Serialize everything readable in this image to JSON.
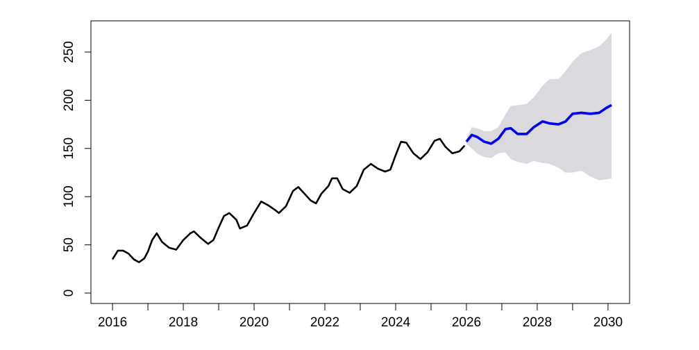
{
  "chart_data": {
    "type": "forecast",
    "xlim": [
      2015.39,
      2030.61
    ],
    "ylim": [
      -10.8,
      282.4
    ],
    "xticks": [
      2016,
      2018,
      2020,
      2022,
      2024,
      2026,
      2028,
      2030
    ],
    "x_minor_ticks": [
      2017,
      2019,
      2021,
      2023,
      2025,
      2027,
      2029
    ],
    "yticks": [
      0,
      50,
      100,
      150,
      200,
      250
    ],
    "history": {
      "color": "#000000",
      "x": [
        2016.0,
        2016.15,
        2016.3,
        2016.45,
        2016.6,
        2016.75,
        2016.9,
        2017.0,
        2017.12,
        2017.25,
        2017.4,
        2017.6,
        2017.8,
        2018.0,
        2018.2,
        2018.3,
        2018.5,
        2018.7,
        2018.85,
        2019.0,
        2019.15,
        2019.3,
        2019.5,
        2019.6,
        2019.8,
        2020.0,
        2020.2,
        2020.4,
        2020.6,
        2020.7,
        2020.9,
        2021.1,
        2021.25,
        2021.4,
        2021.6,
        2021.75,
        2021.9,
        2022.1,
        2022.2,
        2022.35,
        2022.5,
        2022.7,
        2022.9,
        2023.1,
        2023.3,
        2023.5,
        2023.7,
        2023.85,
        2024.0,
        2024.15,
        2024.3,
        2024.5,
        2024.7,
        2024.9,
        2025.1,
        2025.25,
        2025.4,
        2025.6,
        2025.8,
        2025.95
      ],
      "values": [
        35,
        44,
        44,
        41,
        35,
        32,
        36,
        43,
        55,
        62,
        53,
        47,
        45,
        55,
        62,
        64,
        57,
        51,
        55,
        68,
        80,
        83,
        76,
        67,
        70,
        83,
        95,
        91,
        86,
        83,
        90,
        106,
        110,
        104,
        96,
        93,
        103,
        111,
        119,
        119,
        108,
        104,
        111,
        128,
        134,
        129,
        126,
        128,
        143,
        157,
        156,
        145,
        139,
        146,
        158,
        160,
        152,
        145,
        147,
        153
      ]
    },
    "forecast": {
      "color": "#0000ee",
      "band_color": "#d9d9de",
      "x": [
        2026.0,
        2026.15,
        2026.3,
        2026.5,
        2026.7,
        2026.9,
        2027.1,
        2027.25,
        2027.45,
        2027.7,
        2027.9,
        2028.15,
        2028.35,
        2028.6,
        2028.8,
        2029.0,
        2029.25,
        2029.5,
        2029.75,
        2029.95,
        2030.1
      ],
      "values": [
        157,
        164,
        162,
        157,
        155,
        160,
        170,
        171,
        165,
        165,
        172,
        178,
        176,
        175,
        178,
        186,
        187,
        186,
        187,
        192,
        195
      ],
      "upper": [
        160,
        172,
        171,
        168,
        168,
        172,
        185,
        194,
        195,
        196,
        203,
        215,
        222,
        222,
        230,
        240,
        249,
        252,
        256,
        263,
        270
      ],
      "lower": [
        155,
        150,
        145,
        141,
        140,
        145,
        146,
        139,
        136,
        134,
        137,
        135,
        134,
        130,
        125,
        125,
        127,
        121,
        117,
        118,
        119
      ]
    }
  }
}
